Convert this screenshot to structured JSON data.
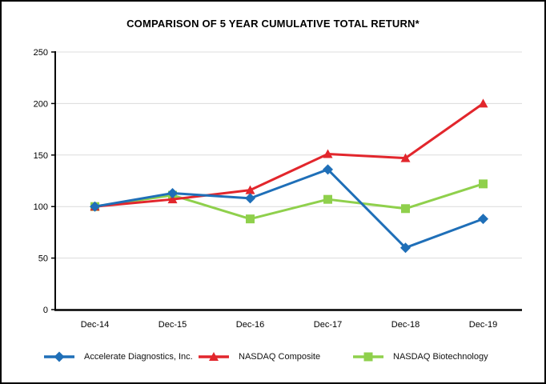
{
  "chart": {
    "title": "COMPARISON OF 5 YEAR CUMULATIVE TOTAL RETURN*"
  },
  "chart_data": {
    "type": "line",
    "title": "COMPARISON OF 5 YEAR CUMULATIVE TOTAL RETURN*",
    "xlabel": "",
    "ylabel": "",
    "categories": [
      "Dec-14",
      "Dec-15",
      "Dec-16",
      "Dec-17",
      "Dec-18",
      "Dec-19"
    ],
    "series": [
      {
        "name": "Accelerate Diagnostics, Inc.",
        "marker": "diamond",
        "color": "#1F6FB8",
        "values": [
          100,
          113,
          108,
          136,
          60,
          88
        ]
      },
      {
        "name": "NASDAQ Composite",
        "marker": "triangle",
        "color": "#E2262C",
        "values": [
          100,
          107,
          116,
          151,
          147,
          200
        ]
      },
      {
        "name": "NASDAQ Biotechnology",
        "marker": "square",
        "color": "#8FD04C",
        "values": [
          100,
          111,
          88,
          107,
          98,
          122
        ]
      }
    ],
    "ylim": [
      0,
      250
    ],
    "yticks": [
      0,
      50,
      100,
      150,
      200,
      250
    ],
    "grid": true,
    "legend_position": "bottom"
  },
  "colors": {
    "background": "#FFFFFF",
    "border": "#000000",
    "axis": "#000000",
    "gridline": "#DCDCDC",
    "tick_label": "#000000"
  }
}
